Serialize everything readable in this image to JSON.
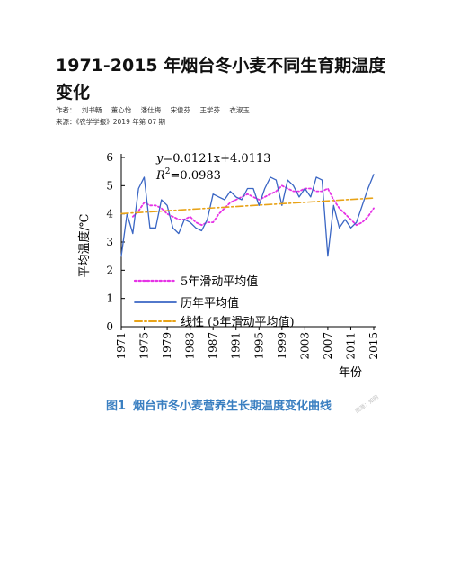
{
  "article": {
    "title": "1971-2015 年烟台冬小麦不同生育期温度变化",
    "authors_label": "作者：",
    "authors": [
      "刘书畅",
      "董心怡",
      "潘仕梅",
      "宋俊芬",
      "王学芬",
      "衣淑玉"
    ],
    "source_label": "来源：",
    "source": "《农学学报》2019 年第 07 期"
  },
  "figure": {
    "number": "图1",
    "caption": "烟台市冬小麦营养生长期温度变化曲线",
    "watermark": "图源：知网"
  },
  "chart_data": {
    "type": "line",
    "ylabel": "平均温度/℃",
    "xlabel": "年份",
    "ylim": [
      0,
      6
    ],
    "xlim": [
      1971,
      2015
    ],
    "yticks": [
      0,
      1,
      2,
      3,
      4,
      5,
      6
    ],
    "xticks": [
      1971,
      1975,
      1979,
      1983,
      1987,
      1991,
      1995,
      1999,
      2003,
      2007,
      2011,
      2015
    ],
    "equation_prefix": "y",
    "equation_rest": "=0.0121x+4.0113",
    "r2_label": "R",
    "r2_sup": "2",
    "r2_value": "=0.0983",
    "x": [
      1971,
      1972,
      1973,
      1974,
      1975,
      1976,
      1977,
      1978,
      1979,
      1980,
      1981,
      1982,
      1983,
      1984,
      1985,
      1986,
      1987,
      1988,
      1989,
      1990,
      1991,
      1992,
      1993,
      1994,
      1995,
      1996,
      1997,
      1998,
      1999,
      2000,
      2001,
      2002,
      2003,
      2004,
      2005,
      2006,
      2007,
      2008,
      2009,
      2010,
      2011,
      2012,
      2013,
      2014,
      2015
    ],
    "series": [
      {
        "name": "5年滑动平均值",
        "style": "dotted",
        "color": "#e633e6",
        "x": [
          1973,
          1974,
          1975,
          1976,
          1977,
          1978,
          1979,
          1980,
          1981,
          1982,
          1983,
          1984,
          1985,
          1986,
          1987,
          1988,
          1989,
          1990,
          1991,
          1992,
          1993,
          1994,
          1995,
          1996,
          1997,
          1998,
          1999,
          2000,
          2001,
          2002,
          2003,
          2004,
          2005,
          2006,
          2007,
          2008,
          2009,
          2010,
          2011,
          2012,
          2013,
          2014,
          2015
        ],
        "values": [
          3.9,
          4.1,
          4.4,
          4.3,
          4.3,
          4.2,
          4.0,
          3.9,
          3.8,
          3.8,
          3.9,
          3.7,
          3.6,
          3.7,
          3.7,
          4.0,
          4.2,
          4.4,
          4.5,
          4.6,
          4.7,
          4.6,
          4.5,
          4.6,
          4.7,
          4.8,
          5.0,
          4.9,
          4.8,
          4.8,
          4.9,
          4.9,
          4.8,
          4.8,
          4.9,
          4.5,
          4.2,
          4.0,
          3.8,
          3.6,
          3.7,
          3.9,
          4.2
        ]
      },
      {
        "name": "历年平均值",
        "style": "solid",
        "color": "#3a66c4",
        "values": [
          2.5,
          4.0,
          3.3,
          4.9,
          5.3,
          3.5,
          3.5,
          4.5,
          4.3,
          3.5,
          3.3,
          3.8,
          3.7,
          3.5,
          3.4,
          3.8,
          4.7,
          4.6,
          4.5,
          4.8,
          4.6,
          4.5,
          4.9,
          4.9,
          4.3,
          4.9,
          5.3,
          5.2,
          4.3,
          5.2,
          5.0,
          4.6,
          4.9,
          4.6,
          5.3,
          5.2,
          2.5,
          4.3,
          3.5,
          3.8,
          3.5,
          3.7,
          4.3,
          4.9,
          5.4
        ]
      },
      {
        "name": "线性 (5年滑动平均值)",
        "style": "dashdot",
        "color": "#e8a317",
        "x": [
          1971,
          2015
        ],
        "values": [
          4.01,
          4.56
        ]
      }
    ]
  }
}
